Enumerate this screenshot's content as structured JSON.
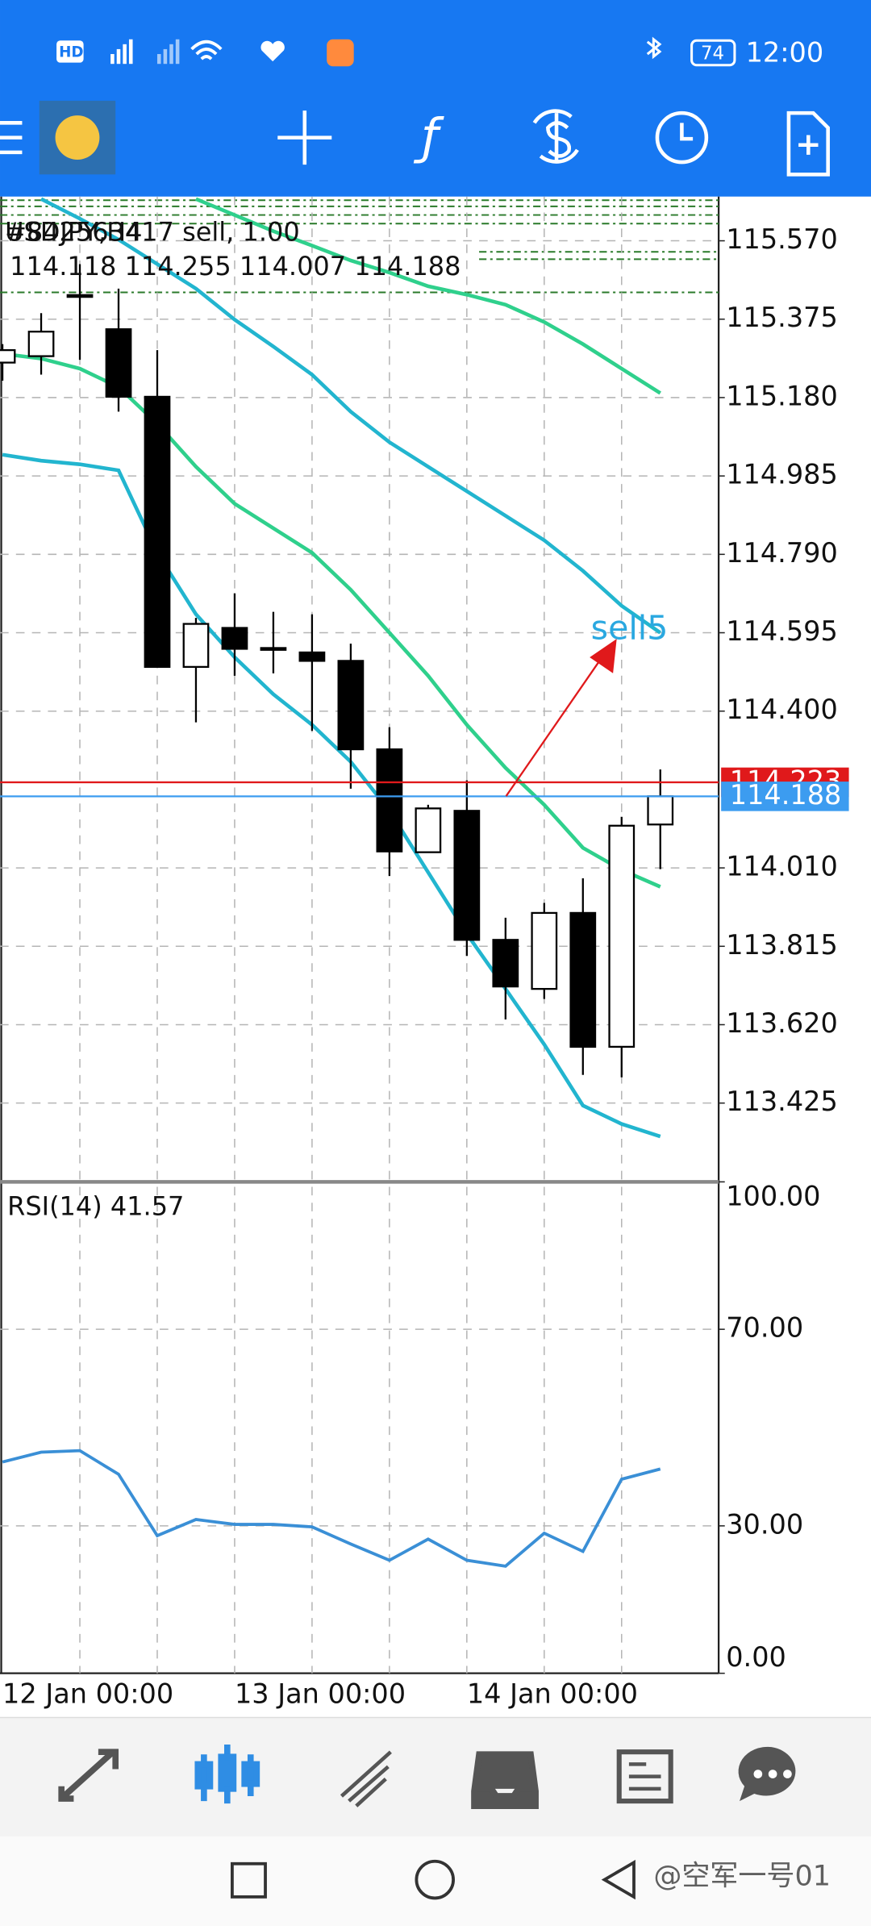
{
  "status_bar": {
    "network": "HD",
    "battery": "74",
    "time": "12:00"
  },
  "watermark": "@空军一号01",
  "chart_data": [
    {
      "type": "candlestick",
      "symbol_label": "USDJPY,H4",
      "order_label": "#842563417 sell, 1.00",
      "ohlc_label": "114.118 114.255 114.007 114.188",
      "annotation": "sell5",
      "categories": [
        "12 Jan 00:00",
        null,
        null,
        null,
        null,
        null,
        "13 Jan 00:00",
        null,
        null,
        null,
        null,
        null,
        "14 Jan 00:00",
        null,
        null,
        null,
        null,
        null
      ],
      "open": [
        115.267,
        115.283,
        115.431,
        115.35,
        115.182,
        114.51,
        114.607,
        114.557,
        114.546,
        114.525,
        114.305,
        114.049,
        114.152,
        113.831,
        113.709,
        113.898,
        113.565,
        114.118
      ],
      "high": [
        115.313,
        115.39,
        115.512,
        115.451,
        115.298,
        114.632,
        114.693,
        114.647,
        114.641,
        114.568,
        114.36,
        114.167,
        114.228,
        113.886,
        113.923,
        113.984,
        114.137,
        114.255
      ],
      "low": [
        115.222,
        115.237,
        115.274,
        115.145,
        114.51,
        114.372,
        114.488,
        114.494,
        114.351,
        114.207,
        113.99,
        114.049,
        113.791,
        113.633,
        113.684,
        113.495,
        113.489,
        114.007
      ],
      "close": [
        115.298,
        115.344,
        115.435,
        115.182,
        114.51,
        114.617,
        114.555,
        114.555,
        114.525,
        114.305,
        114.051,
        114.158,
        113.831,
        113.715,
        113.898,
        113.565,
        114.115,
        114.188
      ],
      "lines": [
        {
          "color": "#2fd08c",
          "values": [
            null,
            null,
            null,
            null,
            null,
            115.674,
            115.634,
            115.594,
            115.558,
            115.521,
            115.491,
            115.457,
            115.436,
            115.411,
            115.368,
            115.313,
            115.252,
            115.191
          ]
        },
        {
          "color": "#22b5cf",
          "values": [
            null,
            115.674,
            115.625,
            115.573,
            115.512,
            115.451,
            115.374,
            115.307,
            115.237,
            115.145,
            115.069,
            115.008,
            114.947,
            114.886,
            114.825,
            114.749,
            114.662,
            114.595
          ]
        },
        {
          "color": "#2fd08c",
          "values": [
            115.289,
            115.277,
            115.252,
            115.206,
            115.115,
            115.008,
            114.916,
            114.855,
            114.794,
            114.702,
            114.595,
            114.488,
            114.366,
            114.259,
            114.167,
            114.06,
            114.005,
            113.963
          ]
        },
        {
          "color": "#22b5cf",
          "values": [
            115.038,
            115.023,
            115.014,
            114.999,
            114.794,
            114.641,
            114.534,
            114.442,
            114.366,
            114.274,
            114.152,
            113.999,
            113.846,
            113.709,
            113.571,
            113.419,
            113.373,
            113.342
          ]
        }
      ],
      "price_lines": [
        {
          "value": 114.223,
          "color": "#e0191b"
        },
        {
          "value": 114.188,
          "color": "#3c9cf0"
        }
      ],
      "ylim": [
        113.229,
        115.68
      ],
      "yticks": [
        {
          "value": 115.57,
          "label": "115.570"
        },
        115.375,
        {
          "value": 115.18,
          "label": "115.180"
        },
        114.985,
        {
          "value": 114.79,
          "label": "114.790"
        },
        114.595,
        {
          "value": 114.4,
          "label": "114.400"
        },
        {
          "value": 114.01,
          "label": "114.010"
        },
        113.815,
        {
          "value": 113.62,
          "label": "113.620"
        },
        113.425
      ],
      "grid": true
    },
    {
      "type": "line",
      "title": "RSI(14) 41.57",
      "color": "#3a8fd6",
      "values": [
        43.0,
        45.0,
        45.3,
        40.5,
        28.0,
        31.3,
        30.3,
        30.3,
        29.8,
        26.3,
        23.0,
        27.3,
        23.0,
        21.8,
        28.5,
        24.8,
        39.5,
        41.57
      ],
      "ylim": [
        0,
        100
      ],
      "yticks": [
        {
          "value": 100,
          "label": "100.00"
        },
        {
          "value": 70,
          "label": "70.00"
        },
        {
          "value": 30,
          "label": "30.00"
        },
        {
          "value": 0,
          "label": "0.00"
        }
      ],
      "grid": true
    }
  ]
}
